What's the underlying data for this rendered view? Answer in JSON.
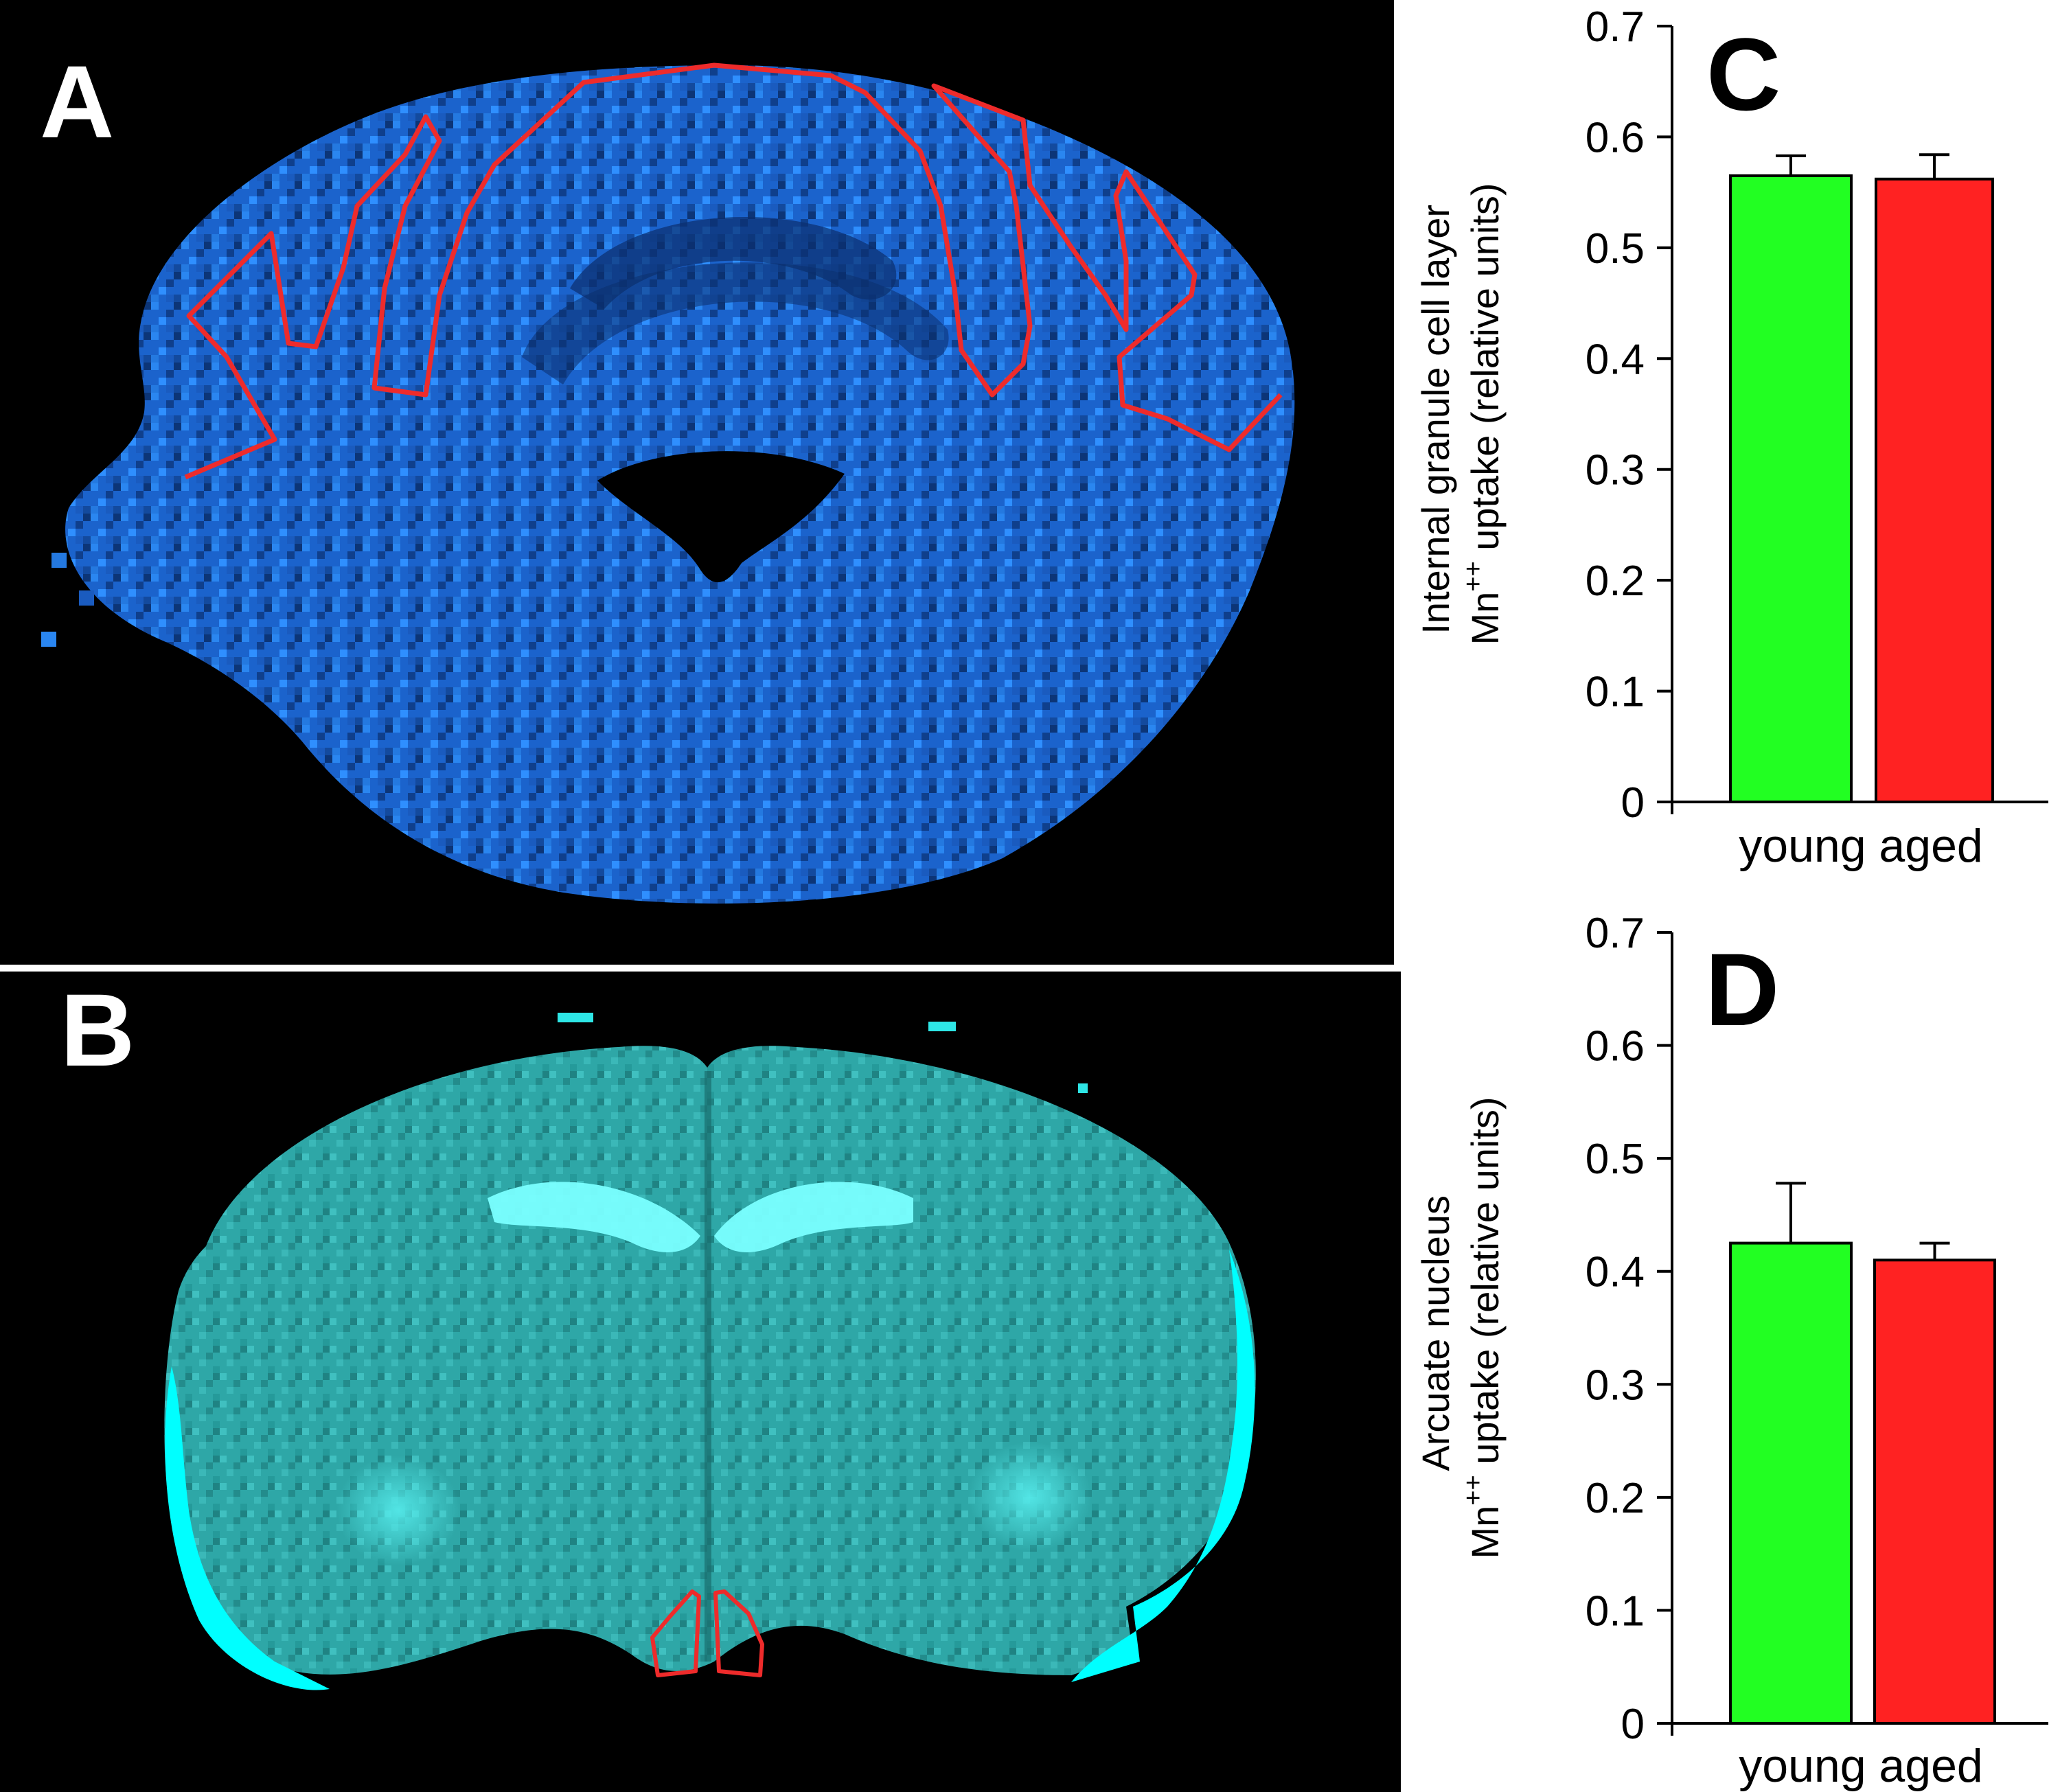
{
  "panels": {
    "A": {
      "letter": "A",
      "image_name": "cerebellum-mri-blue"
    },
    "B": {
      "letter": "B",
      "image_name": "forebrain-mri-cyan"
    }
  },
  "colors": {
    "young": "#22ff22",
    "aged": "#ff2222",
    "roi_outline": "#ee2b2b",
    "panel_a_tint": "#1e6fe0",
    "panel_b_tint": "#38d6d6"
  },
  "chart_data": [
    {
      "type": "bar",
      "panel": "C",
      "letter": "C",
      "categories": [
        "young",
        "aged"
      ],
      "category_label_text": "young aged",
      "values": [
        0.565,
        0.562
      ],
      "errors": [
        0.018,
        0.022
      ],
      "ylabel_lines": [
        "Internal granule cell layer",
        "Mn",
        "++",
        " uptake (relative units)"
      ],
      "ylim": [
        0,
        0.7
      ],
      "yticks": [
        "0",
        "0.1",
        "0.2",
        "0.3",
        "0.4",
        "0.5",
        "0.6",
        "0.7"
      ],
      "colors": [
        "#22ff22",
        "#ff2222"
      ]
    },
    {
      "type": "bar",
      "panel": "D",
      "letter": "D",
      "categories": [
        "young",
        "aged"
      ],
      "category_label_text": "young aged",
      "values": [
        0.425,
        0.41
      ],
      "errors": [
        0.053,
        0.015
      ],
      "ylabel_lines": [
        "Arcuate nucleus",
        "Mn",
        "++",
        " uptake (relative units)"
      ],
      "ylim": [
        0,
        0.7
      ],
      "yticks": [
        "0",
        "0.1",
        "0.2",
        "0.3",
        "0.4",
        "0.5",
        "0.6",
        "0.7"
      ],
      "colors": [
        "#22ff22",
        "#ff2222"
      ]
    }
  ]
}
